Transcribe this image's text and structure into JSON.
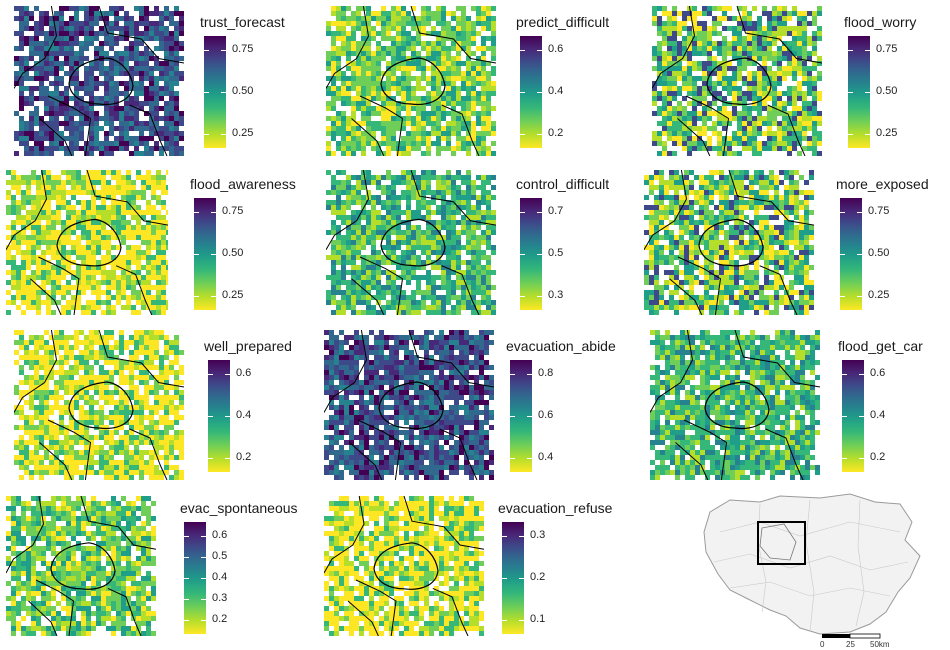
{
  "panels": [
    {
      "id": "trust_forecast",
      "title": "trust_forecast",
      "ticks": [
        "0.75",
        "0.50",
        "0.25"
      ],
      "fill": "dark",
      "tl": [
        200,
        14
      ],
      "mp": [
        14,
        6,
        170,
        150
      ]
    },
    {
      "id": "predict_difficult",
      "title": "predict_difficult",
      "ticks": [
        "0.6",
        "0.4",
        "0.2"
      ],
      "fill": "mid",
      "tl": [
        516,
        14
      ],
      "mp": [
        326,
        6,
        170,
        150
      ]
    },
    {
      "id": "flood_worry",
      "title": "flood_worry",
      "ticks": [
        "0.75",
        "0.50",
        "0.25"
      ],
      "fill": "mix",
      "tl": [
        844,
        14
      ],
      "mp": [
        652,
        6,
        170,
        150
      ]
    },
    {
      "id": "flood_awareness",
      "title": "flood_awareness",
      "ticks": [
        "0.75",
        "0.50",
        "0.25"
      ],
      "fill": "light",
      "tl": [
        190,
        176
      ],
      "mp": [
        6,
        170,
        162,
        145
      ]
    },
    {
      "id": "control_difficult",
      "title": "control_difficult",
      "ticks": [
        "0.7",
        "0.5",
        "0.3"
      ],
      "fill": "midteal",
      "tl": [
        516,
        176
      ],
      "mp": [
        326,
        170,
        170,
        145
      ]
    },
    {
      "id": "more_exposed",
      "title": "more_exposed",
      "ticks": [
        "0.75",
        "0.50",
        "0.25"
      ],
      "fill": "mix",
      "tl": [
        836,
        176
      ],
      "mp": [
        644,
        170,
        170,
        145
      ]
    },
    {
      "id": "well_prepared",
      "title": "well_prepared",
      "ticks": [
        "0.6",
        "0.4",
        "0.2"
      ],
      "fill": "light",
      "tl": [
        204,
        338
      ],
      "mp": [
        14,
        330,
        170,
        150
      ]
    },
    {
      "id": "evacuation_abide",
      "title": "evacuation_abide",
      "ticks": [
        "0.8",
        "0.6",
        "0.4"
      ],
      "fill": "dark",
      "tl": [
        506,
        338
      ],
      "mp": [
        324,
        330,
        170,
        150
      ]
    },
    {
      "id": "flood_get_car",
      "title": "flood_get_car",
      "ticks": [
        "0.6",
        "0.4",
        "0.2"
      ],
      "fill": "midteal",
      "tl": [
        838,
        338
      ],
      "mp": [
        650,
        330,
        170,
        150
      ]
    },
    {
      "id": "evac_spontaneous",
      "title": "evac_spontaneous",
      "ticks": [
        "0.6",
        "0.5",
        "0.4",
        "0.3",
        "0.2"
      ],
      "fill": "mid",
      "tl": [
        180,
        500
      ],
      "mp": [
        6,
        496,
        150,
        140
      ]
    },
    {
      "id": "evacuation_refuse",
      "title": "evacuation_refuse",
      "ticks": [
        "0.3",
        "0.2",
        "0.1"
      ],
      "fill": "light",
      "tl": [
        498,
        500
      ],
      "mp": [
        324,
        496,
        160,
        140
      ]
    }
  ],
  "scale": {
    "labels": [
      "0",
      "25",
      "50km"
    ]
  }
}
